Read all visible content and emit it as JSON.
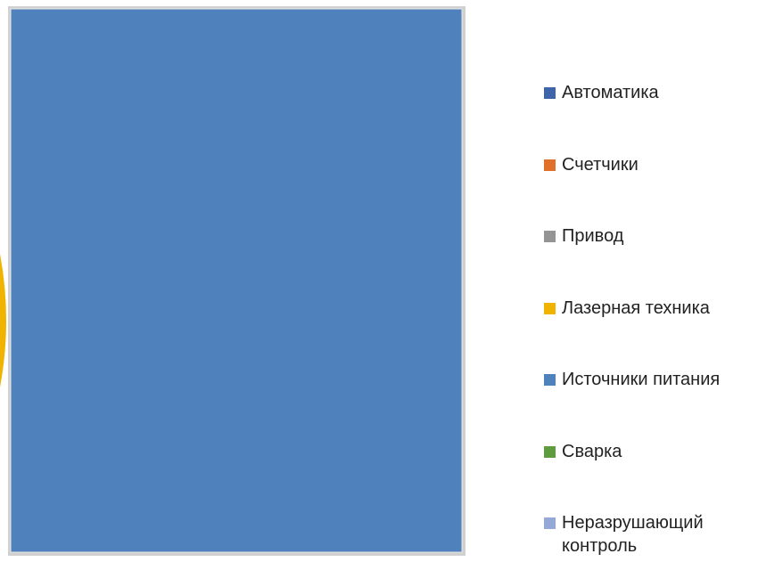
{
  "chart_data": {
    "type": "pie",
    "legend": {
      "position": "right",
      "items": [
        {
          "label": "Автоматика",
          "color": "#3f64aa"
        },
        {
          "label": "Счетчики",
          "color": "#e0702a"
        },
        {
          "label": "Привод",
          "color": "#949494"
        },
        {
          "label": "Лазерная техника",
          "color": "#f0b400"
        },
        {
          "label": "Источники питания",
          "color": "#4f81bd"
        },
        {
          "label": "Сварка",
          "color": "#5e9c3e"
        },
        {
          "label": "Неразрушающий контроль",
          "color": "#95a9d9"
        }
      ]
    }
  }
}
